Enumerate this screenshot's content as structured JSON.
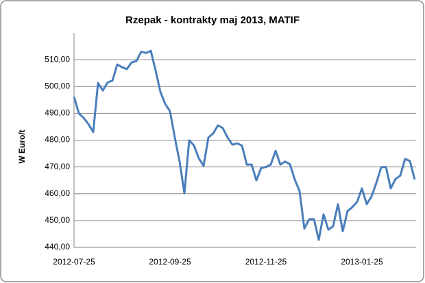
{
  "chart_data": {
    "type": "line",
    "title": "Rzepak - kontrakty maj 2013, MATIF",
    "y_label": "W Euro/t",
    "categories": [
      "2012-07-25",
      null,
      null,
      null,
      null,
      null,
      null,
      null,
      null,
      null,
      null,
      null,
      null,
      null,
      null,
      null,
      null,
      null,
      null,
      null,
      "2012-09-25",
      null,
      null,
      null,
      null,
      null,
      null,
      null,
      null,
      null,
      null,
      null,
      null,
      null,
      null,
      null,
      null,
      null,
      null,
      null,
      "2012-11-25",
      null,
      null,
      null,
      null,
      null,
      null,
      null,
      null,
      null,
      null,
      null,
      null,
      null,
      null,
      null,
      null,
      null,
      null,
      null,
      "2013-01-25",
      null,
      null,
      null,
      null,
      null,
      null,
      null,
      null,
      null,
      null,
      null
    ],
    "values": [
      496.2,
      490,
      488.3,
      486,
      483,
      501.3,
      498.5,
      501.5,
      502.2,
      508.2,
      507.2,
      506.5,
      509,
      509.5,
      513,
      512.5,
      513.3,
      506,
      498,
      493.5,
      490.8,
      481,
      472,
      460.2,
      479.9,
      478,
      473.2,
      470.4,
      481,
      482.5,
      485.5,
      484.5,
      481,
      478.3,
      478.8,
      478,
      470.9,
      470.9,
      465,
      469.6,
      470,
      470.9,
      476,
      470.9,
      472,
      471,
      465.3,
      461,
      447,
      450.5,
      450.5,
      442.8,
      452.3,
      446.6,
      447.9,
      456.1,
      446,
      453.5,
      455,
      457,
      462,
      456.1,
      459,
      464,
      469.9,
      470,
      462,
      465.5,
      466.8,
      473,
      472.2,
      465.3
    ],
    "color": "#4a7ebb",
    "ylim": [
      440,
      520
    ],
    "yticks": [
      {
        "value": 440,
        "label": "440,00"
      },
      {
        "value": 450,
        "label": "450,00"
      },
      {
        "value": 460,
        "label": "460,00"
      },
      {
        "value": 470,
        "label": "470,00"
      },
      {
        "value": 480,
        "label": "480,00"
      },
      {
        "value": 490,
        "label": "490,00"
      },
      {
        "value": 500,
        "label": "500,00"
      },
      {
        "value": 510,
        "label": "510,00"
      }
    ],
    "grid": true
  }
}
